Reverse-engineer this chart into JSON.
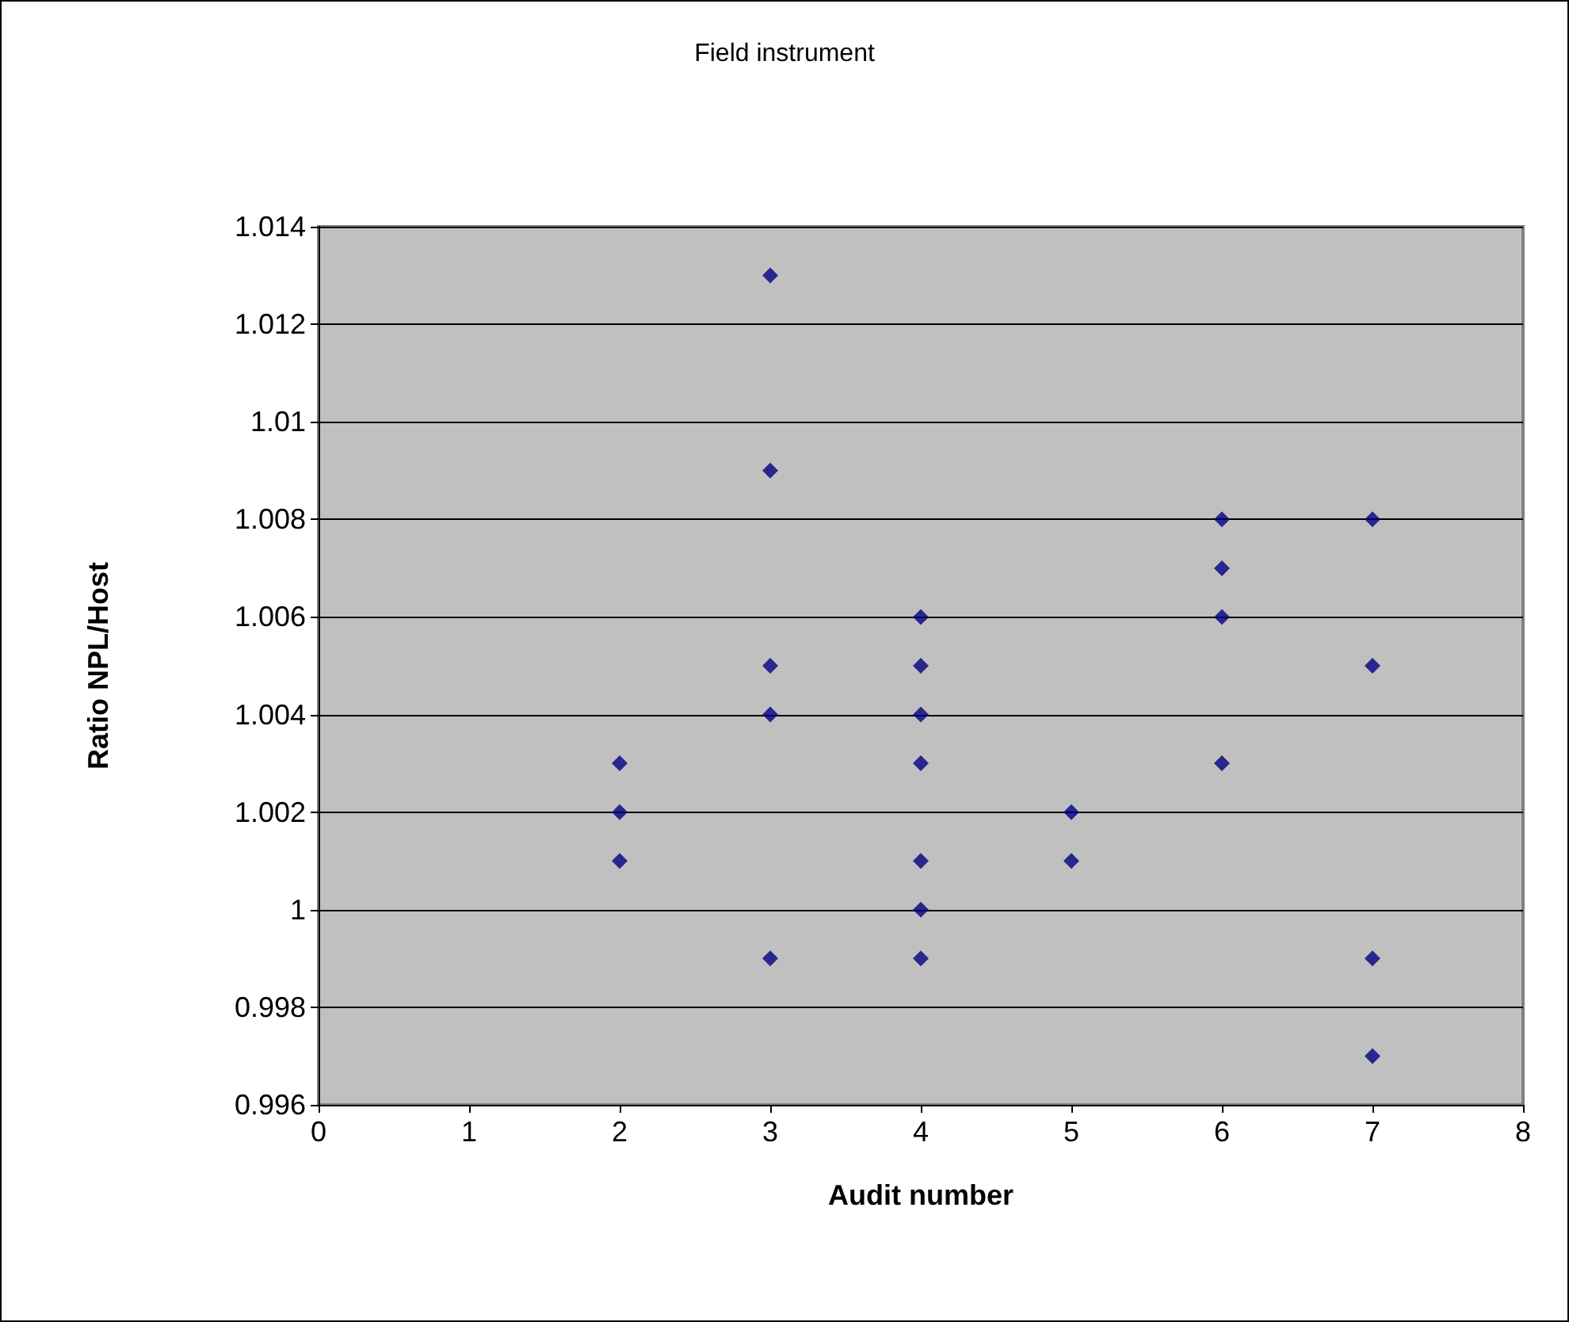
{
  "chart_data": {
    "type": "scatter",
    "title": "Field instrument",
    "xlabel": "Audit number",
    "ylabel": "Ratio NPL/Host",
    "x": [
      2,
      2,
      2,
      3,
      3,
      3,
      3,
      3,
      4,
      4,
      4,
      4,
      4,
      4,
      4,
      5,
      5,
      6,
      6,
      6,
      6,
      7,
      7,
      7,
      7
    ],
    "values": [
      1.003,
      1.002,
      1.001,
      1.013,
      1.009,
      1.005,
      1.004,
      0.999,
      1.006,
      1.005,
      1.004,
      1.003,
      1.001,
      1.0,
      0.999,
      1.002,
      1.001,
      1.008,
      1.007,
      1.006,
      1.003,
      1.008,
      1.005,
      0.999,
      0.997
    ],
    "color": "#000080",
    "marker": "diamond",
    "grid": "y",
    "xlim": [
      0,
      8
    ],
    "xticks": [
      0,
      1,
      2,
      3,
      4,
      5,
      6,
      7,
      8
    ],
    "ylim": [
      0.996,
      1.014
    ],
    "yticks": [
      0.996,
      0.998,
      1,
      1.002,
      1.004,
      1.006,
      1.008,
      1.01,
      1.012,
      1.014
    ]
  }
}
